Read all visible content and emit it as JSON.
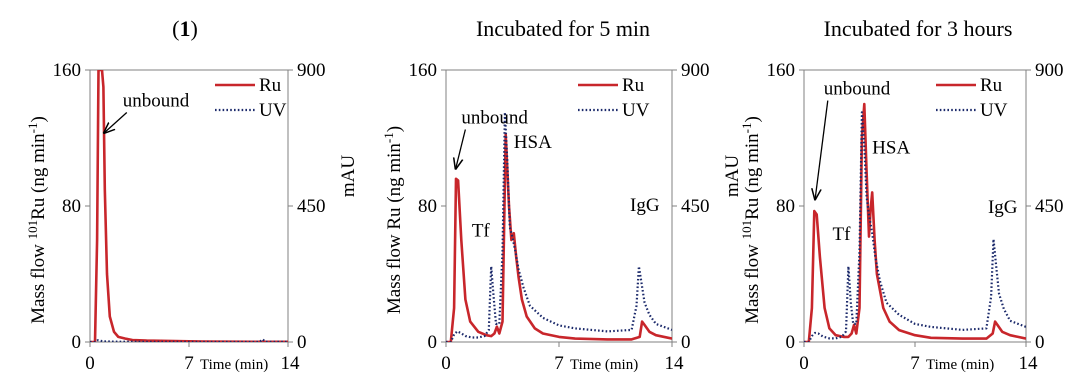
{
  "colors": {
    "ru": "#c8262b",
    "uv": "#1c2a6b",
    "axis": "#808080"
  },
  "chart_data": [
    {
      "type": "line",
      "title": "(1)",
      "xlabel": "Time (min)",
      "ylabel": "Mass flow ¹⁰¹Ru (ng min⁻¹)",
      "ylabel_parts": {
        "pre": "Mass flow ",
        "sup1": "101",
        "mid": "Ru (ng min",
        "sup2": "-1",
        "post": ")"
      },
      "y2label": "mAU",
      "xlim": [
        0,
        14
      ],
      "ylim": [
        0,
        160
      ],
      "y2lim": [
        0,
        900
      ],
      "x_ticks": [
        "0",
        "7",
        "14"
      ],
      "y_ticks": [
        "0",
        "80",
        "160"
      ],
      "y2_ticks": [
        "0",
        "450",
        "900"
      ],
      "legend": {
        "position": "top-right",
        "entries": [
          "Ru",
          "UV"
        ]
      },
      "annotations": [
        {
          "text": "unbound",
          "arrow_from": [
            2.6,
            135
          ],
          "arrow_to": [
            1.0,
            123
          ]
        }
      ],
      "series": [
        {
          "name": "Ru",
          "axis": "left",
          "style": "solid",
          "x": [
            0,
            0.35,
            0.5,
            0.6,
            0.7,
            0.85,
            0.95,
            1.05,
            1.2,
            1.4,
            1.7,
            2.0,
            2.5,
            3.0,
            4.0,
            6.0,
            8.0,
            10.0,
            12.0,
            14.0
          ],
          "y": [
            0,
            0,
            60,
            160,
            160,
            160,
            150,
            90,
            40,
            15,
            6,
            3,
            2,
            1.2,
            0.8,
            0.5,
            0.3,
            0.2,
            0.1,
            0.1
          ]
        },
        {
          "name": "UV",
          "axis": "right",
          "style": "dotted",
          "x": [
            0,
            0.4,
            0.55,
            0.75,
            1.0,
            2.0,
            4.0,
            7.0,
            10.0,
            12.0,
            12.2,
            12.4,
            14.0
          ],
          "y": [
            0,
            0,
            6,
            4,
            2,
            1,
            0.5,
            0.3,
            0.3,
            0.5,
            9,
            1,
            0.5
          ]
        }
      ]
    },
    {
      "type": "line",
      "title": "Incubated for 5 min",
      "xlabel": "Time (min)",
      "ylabel": "Mass flow Ru (ng min⁻¹)",
      "ylabel_parts": {
        "pre": "Mass flow Ru (ng min",
        "sup1": "",
        "mid": "",
        "sup2": "-1",
        "post": ")"
      },
      "y2label": "mAU",
      "xlim": [
        0,
        14
      ],
      "ylim": [
        0,
        160
      ],
      "y2lim": [
        0,
        900
      ],
      "x_ticks": [
        "0",
        "7",
        "14"
      ],
      "y_ticks": [
        "0",
        "80",
        "160"
      ],
      "y2_ticks": [
        "0",
        "450",
        "900"
      ],
      "legend": {
        "position": "top-right",
        "entries": [
          "Ru",
          "UV"
        ]
      },
      "annotations": [
        {
          "text": "unbound",
          "arrow_from": [
            1.2,
            125
          ],
          "arrow_to": [
            0.6,
            102
          ]
        },
        {
          "text": "Tf",
          "at": [
            1.6,
            62
          ]
        },
        {
          "text": "HSA",
          "at": [
            4.2,
            114
          ]
        },
        {
          "text": "IgG",
          "at": [
            11.4,
            77
          ]
        }
      ],
      "series": [
        {
          "name": "Ru",
          "axis": "left",
          "style": "solid",
          "x": [
            0,
            0.3,
            0.5,
            0.62,
            0.75,
            0.95,
            1.2,
            1.5,
            2.0,
            2.5,
            2.8,
            3.0,
            3.15,
            3.3,
            3.5,
            3.7,
            3.9,
            4.05,
            4.2,
            4.35,
            4.5,
            4.7,
            5.0,
            5.5,
            6.0,
            7.0,
            8.0,
            10.0,
            11.5,
            12.0,
            12.15,
            12.3,
            12.6,
            13.0,
            14.0
          ],
          "y": [
            0,
            0,
            20,
            96,
            95,
            60,
            25,
            12,
            6,
            4,
            3.5,
            5,
            9,
            5,
            12,
            122,
            80,
            60,
            64,
            50,
            38,
            25,
            15,
            8,
            5,
            3,
            2,
            1.5,
            1.5,
            3,
            12,
            10,
            6,
            4,
            2
          ]
        },
        {
          "name": "UV",
          "axis": "right",
          "style": "dotted",
          "x": [
            0,
            0.3,
            0.5,
            0.7,
            0.9,
            1.2,
            1.6,
            2.0,
            2.4,
            2.65,
            2.8,
            2.95,
            3.1,
            3.3,
            3.5,
            3.65,
            3.8,
            3.95,
            4.1,
            4.3,
            4.5,
            4.8,
            5.2,
            6.0,
            7.0,
            8.0,
            10.0,
            11.5,
            11.8,
            11.95,
            12.1,
            12.3,
            12.6,
            13.0,
            14.0
          ],
          "y": [
            0,
            0,
            25,
            35,
            30,
            20,
            15,
            15,
            20,
            40,
            250,
            150,
            60,
            60,
            300,
            760,
            600,
            380,
            350,
            300,
            240,
            180,
            120,
            80,
            55,
            45,
            35,
            40,
            120,
            250,
            200,
            130,
            90,
            60,
            40
          ]
        }
      ]
    },
    {
      "type": "line",
      "title": "Incubated for 3 hours",
      "xlabel": "Time (min)",
      "ylabel": "Mass flow ¹⁰¹Ru (ng min⁻¹)",
      "ylabel_parts": {
        "pre": "Mass flow ",
        "sup1": "101",
        "mid": "Ru (ng min",
        "sup2": "-1",
        "post": ")"
      },
      "y2label": "mAU",
      "xlim": [
        0,
        14
      ],
      "ylim": [
        0,
        160
      ],
      "y2lim": [
        0,
        900
      ],
      "x_ticks": [
        "0",
        "7",
        "14"
      ],
      "y_ticks": [
        "0",
        "80",
        "160"
      ],
      "y2_ticks": [
        "0",
        "450",
        "900"
      ],
      "legend": {
        "position": "top-right",
        "entries": [
          "Ru",
          "UV"
        ]
      },
      "annotations": [
        {
          "text": "unbound",
          "arrow_from": [
            1.5,
            142
          ],
          "arrow_to": [
            0.7,
            84
          ]
        },
        {
          "text": "Tf",
          "at": [
            1.8,
            60
          ]
        },
        {
          "text": "HSA",
          "at": [
            4.3,
            111
          ]
        },
        {
          "text": "IgG",
          "at": [
            11.6,
            76
          ]
        }
      ],
      "series": [
        {
          "name": "Ru",
          "axis": "left",
          "style": "solid",
          "x": [
            0,
            0.3,
            0.5,
            0.65,
            0.8,
            1.0,
            1.3,
            1.6,
            2.0,
            2.5,
            2.8,
            3.0,
            3.15,
            3.3,
            3.5,
            3.65,
            3.8,
            3.95,
            4.1,
            4.2,
            4.3,
            4.45,
            4.6,
            4.8,
            5.0,
            5.4,
            6.0,
            7.0,
            8.0,
            10.0,
            11.5,
            11.9,
            12.05,
            12.2,
            12.5,
            13.0,
            14.0
          ],
          "y": [
            0,
            0,
            20,
            77,
            75,
            50,
            20,
            8,
            4,
            3,
            3,
            5,
            10,
            5,
            20,
            120,
            140,
            100,
            62,
            78,
            88,
            60,
            40,
            30,
            20,
            12,
            7,
            4,
            2.5,
            2,
            2,
            5,
            12,
            10,
            6,
            4,
            2
          ]
        },
        {
          "name": "UV",
          "axis": "right",
          "style": "dotted",
          "x": [
            0,
            0.3,
            0.5,
            0.7,
            0.9,
            1.2,
            1.6,
            2.0,
            2.4,
            2.65,
            2.8,
            2.95,
            3.1,
            3.3,
            3.5,
            3.65,
            3.8,
            3.95,
            4.1,
            4.3,
            4.5,
            4.8,
            5.2,
            6.0,
            7.0,
            8.0,
            10.0,
            11.5,
            11.8,
            11.95,
            12.1,
            12.3,
            12.6,
            13.0,
            14.0
          ],
          "y": [
            0,
            0,
            20,
            30,
            28,
            18,
            12,
            12,
            18,
            35,
            250,
            130,
            60,
            60,
            300,
            760,
            650,
            480,
            420,
            360,
            280,
            200,
            130,
            90,
            60,
            50,
            40,
            45,
            150,
            340,
            260,
            160,
            110,
            70,
            50
          ]
        }
      ]
    }
  ]
}
